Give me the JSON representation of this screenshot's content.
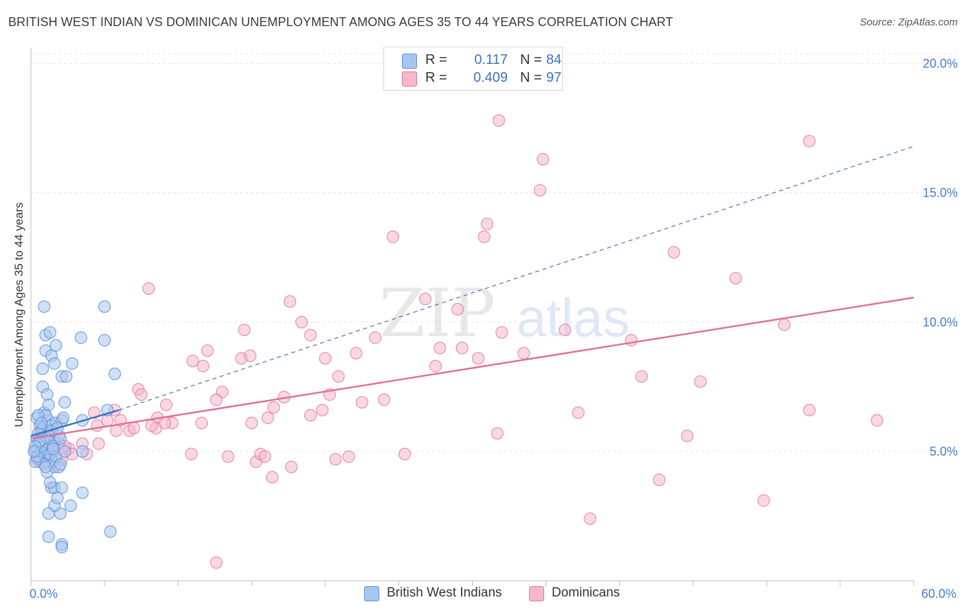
{
  "title": "BRITISH WEST INDIAN VS DOMINICAN UNEMPLOYMENT AMONG AGES 35 TO 44 YEARS CORRELATION CHART",
  "source": "Source: ZipAtlas.com",
  "watermark": {
    "zip": "ZIP",
    "atlas": "atlas"
  },
  "legend": {
    "rows": [
      {
        "r_label": "R =",
        "r_value": "0.117",
        "n_label": "N =",
        "n_value": "84"
      },
      {
        "r_label": "R =",
        "r_value": "0.409",
        "n_label": "N =",
        "n_value": "97"
      }
    ]
  },
  "bottom_legend": [
    {
      "name": "British West Indians"
    },
    {
      "name": "Dominicans"
    }
  ],
  "colors": {
    "blue_fill": "#a9c6ef",
    "blue_stroke": "#5b8fd6",
    "blue_line": "#3f72c4",
    "pink_fill": "#f5b8cb",
    "pink_stroke": "#e0799b",
    "pink_line": "#e0709a",
    "axis_label": "#4a7cc9",
    "grid": "#e3e3e3"
  },
  "chart_data": {
    "type": "scatter",
    "title": "BRITISH WEST INDIAN VS DOMINICAN UNEMPLOYMENT AMONG AGES 35 TO 44 YEARS CORRELATION CHART",
    "xlabel": "",
    "ylabel": "Unemployment Among Ages 35 to 44 years",
    "xlim": [
      0,
      60
    ],
    "ylim": [
      0,
      20.6
    ],
    "x_tick_labels": [
      {
        "value": 0,
        "label": "0.0%"
      },
      {
        "value": 60,
        "label": "60.0%"
      }
    ],
    "y_ticks": [
      {
        "value": 5,
        "label": "5.0%"
      },
      {
        "value": 10,
        "label": "10.0%"
      },
      {
        "value": 15,
        "label": "15.0%"
      },
      {
        "value": 20,
        "label": "20.0%"
      }
    ],
    "series": [
      {
        "name": "British West Indians",
        "r": 0.117,
        "n": 84,
        "trend_solid": {
          "x": [
            0,
            6
          ],
          "y": [
            5.6,
            6.6
          ]
        },
        "trend_dashed": {
          "x": [
            6,
            60
          ],
          "y": [
            6.6,
            16.8
          ]
        },
        "points": [
          [
            0.3,
            5.0
          ],
          [
            0.4,
            5.5
          ],
          [
            0.5,
            4.8
          ],
          [
            0.6,
            6.0
          ],
          [
            0.7,
            5.8
          ],
          [
            0.8,
            5.2
          ],
          [
            0.9,
            6.5
          ],
          [
            1.0,
            5.6
          ],
          [
            1.1,
            4.9
          ],
          [
            1.2,
            6.2
          ],
          [
            0.5,
            5.3
          ],
          [
            0.6,
            4.7
          ],
          [
            0.8,
            5.9
          ],
          [
            1.0,
            6.4
          ],
          [
            1.2,
            5.1
          ],
          [
            1.3,
            5.7
          ],
          [
            1.4,
            6.0
          ],
          [
            1.5,
            4.6
          ],
          [
            1.6,
            5.4
          ],
          [
            1.7,
            6.1
          ],
          [
            0.4,
            6.3
          ],
          [
            0.7,
            5.0
          ],
          [
            0.9,
            4.5
          ],
          [
            1.1,
            5.5
          ],
          [
            1.3,
            4.9
          ],
          [
            1.5,
            5.2
          ],
          [
            1.7,
            4.8
          ],
          [
            1.9,
            5.6
          ],
          [
            2.1,
            6.2
          ],
          [
            2.3,
            5.0
          ],
          [
            0.8,
            8.2
          ],
          [
            0.8,
            7.5
          ],
          [
            1.0,
            8.9
          ],
          [
            1.0,
            9.5
          ],
          [
            1.1,
            7.2
          ],
          [
            1.2,
            6.8
          ],
          [
            1.3,
            9.6
          ],
          [
            1.4,
            8.7
          ],
          [
            1.6,
            8.4
          ],
          [
            1.7,
            9.1
          ],
          [
            0.9,
            10.6
          ],
          [
            2.1,
            7.9
          ],
          [
            2.3,
            6.9
          ],
          [
            2.0,
            5.5
          ],
          [
            2.2,
            6.3
          ],
          [
            2.4,
            7.9
          ],
          [
            2.8,
            8.4
          ],
          [
            3.4,
            9.4
          ],
          [
            5.0,
            10.6
          ],
          [
            5.0,
            9.3
          ],
          [
            5.7,
            8.0
          ],
          [
            5.2,
            6.6
          ],
          [
            3.5,
            6.2
          ],
          [
            3.5,
            5.0
          ],
          [
            2.7,
            2.9
          ],
          [
            3.5,
            3.4
          ],
          [
            2.0,
            2.6
          ],
          [
            1.4,
            3.6
          ],
          [
            1.6,
            3.6
          ],
          [
            1.6,
            2.9
          ],
          [
            1.8,
            3.2
          ],
          [
            1.3,
            3.8
          ],
          [
            1.1,
            4.2
          ],
          [
            1.2,
            2.6
          ],
          [
            1.2,
            1.7
          ],
          [
            2.1,
            3.6
          ],
          [
            2.1,
            1.4
          ],
          [
            2.1,
            1.3
          ],
          [
            5.4,
            1.9
          ],
          [
            1.6,
            4.4
          ],
          [
            1.9,
            4.4
          ],
          [
            2.0,
            4.5
          ],
          [
            1.5,
            5.1
          ],
          [
            0.3,
            4.6
          ],
          [
            0.5,
            5.7
          ],
          [
            0.6,
            5.4
          ],
          [
            0.4,
            4.8
          ],
          [
            0.3,
            5.2
          ],
          [
            0.2,
            5.0
          ],
          [
            0.5,
            6.4
          ],
          [
            1.0,
            4.4
          ],
          [
            1.4,
            5.8
          ],
          [
            0.7,
            6.1
          ],
          [
            1.8,
            5.9
          ]
        ]
      },
      {
        "name": "Dominicans",
        "r": 0.409,
        "n": 97,
        "trend_solid": {
          "x": [
            0,
            60
          ],
          "y": [
            5.5,
            10.95
          ]
        },
        "points": [
          [
            31.8,
            17.8
          ],
          [
            34.8,
            16.3
          ],
          [
            34.6,
            15.1
          ],
          [
            31.0,
            13.8
          ],
          [
            30.8,
            13.3
          ],
          [
            24.6,
            13.3
          ],
          [
            52.9,
            17.0
          ],
          [
            43.7,
            12.7
          ],
          [
            47.9,
            11.7
          ],
          [
            26.8,
            10.9
          ],
          [
            29.0,
            10.5
          ],
          [
            17.6,
            10.8
          ],
          [
            18.4,
            10.0
          ],
          [
            14.5,
            9.7
          ],
          [
            19.0,
            9.5
          ],
          [
            23.4,
            9.4
          ],
          [
            27.8,
            9.0
          ],
          [
            29.3,
            9.0
          ],
          [
            36.3,
            9.7
          ],
          [
            32.0,
            9.6
          ],
          [
            40.8,
            9.3
          ],
          [
            51.2,
            9.9
          ],
          [
            8.0,
            11.3
          ],
          [
            12.0,
            8.9
          ],
          [
            14.3,
            8.6
          ],
          [
            14.9,
            8.7
          ],
          [
            11.0,
            8.5
          ],
          [
            11.7,
            8.3
          ],
          [
            20.0,
            8.6
          ],
          [
            22.1,
            8.8
          ],
          [
            27.5,
            8.3
          ],
          [
            30.4,
            8.6
          ],
          [
            33.5,
            8.8
          ],
          [
            20.9,
            7.9
          ],
          [
            41.5,
            7.9
          ],
          [
            45.5,
            7.7
          ],
          [
            13.0,
            7.3
          ],
          [
            12.6,
            7.0
          ],
          [
            17.2,
            7.1
          ],
          [
            20.3,
            7.2
          ],
          [
            22.5,
            6.9
          ],
          [
            24.0,
            7.0
          ],
          [
            9.2,
            6.8
          ],
          [
            8.6,
            6.3
          ],
          [
            9.6,
            6.1
          ],
          [
            11.6,
            6.1
          ],
          [
            15.0,
            6.1
          ],
          [
            16.1,
            6.3
          ],
          [
            16.5,
            6.7
          ],
          [
            19.0,
            6.4
          ],
          [
            19.8,
            6.6
          ],
          [
            8.5,
            5.9
          ],
          [
            8.2,
            6.0
          ],
          [
            9.1,
            6.1
          ],
          [
            7.3,
            7.4
          ],
          [
            7.5,
            7.2
          ],
          [
            4.3,
            6.5
          ],
          [
            4.5,
            6.0
          ],
          [
            5.2,
            6.2
          ],
          [
            5.7,
            6.6
          ],
          [
            6.1,
            6.2
          ],
          [
            6.7,
            5.8
          ],
          [
            7.0,
            5.9
          ],
          [
            37.2,
            6.5
          ],
          [
            57.5,
            6.2
          ],
          [
            52.9,
            6.6
          ],
          [
            31.7,
            5.7
          ],
          [
            44.6,
            5.6
          ],
          [
            5.8,
            5.8
          ],
          [
            3.5,
            5.3
          ],
          [
            2.6,
            5.1
          ],
          [
            2.3,
            5.2
          ],
          [
            1.9,
            5.3
          ],
          [
            1.5,
            5.0
          ],
          [
            2.8,
            4.9
          ],
          [
            3.8,
            4.9
          ],
          [
            4.6,
            5.3
          ],
          [
            10.9,
            4.9
          ],
          [
            13.4,
            4.8
          ],
          [
            15.3,
            4.6
          ],
          [
            15.6,
            4.9
          ],
          [
            15.9,
            4.8
          ],
          [
            20.7,
            4.7
          ],
          [
            21.6,
            4.8
          ],
          [
            25.4,
            4.9
          ],
          [
            16.4,
            4.0
          ],
          [
            17.7,
            4.4
          ],
          [
            42.7,
            3.9
          ],
          [
            49.8,
            3.1
          ],
          [
            38.0,
            2.4
          ],
          [
            12.6,
            0.7
          ],
          [
            1.0,
            4.8
          ],
          [
            0.6,
            4.6
          ],
          [
            0.4,
            4.7
          ],
          [
            1.2,
            4.9
          ],
          [
            2.1,
            4.7
          ],
          [
            1.4,
            5.2
          ]
        ]
      }
    ]
  }
}
